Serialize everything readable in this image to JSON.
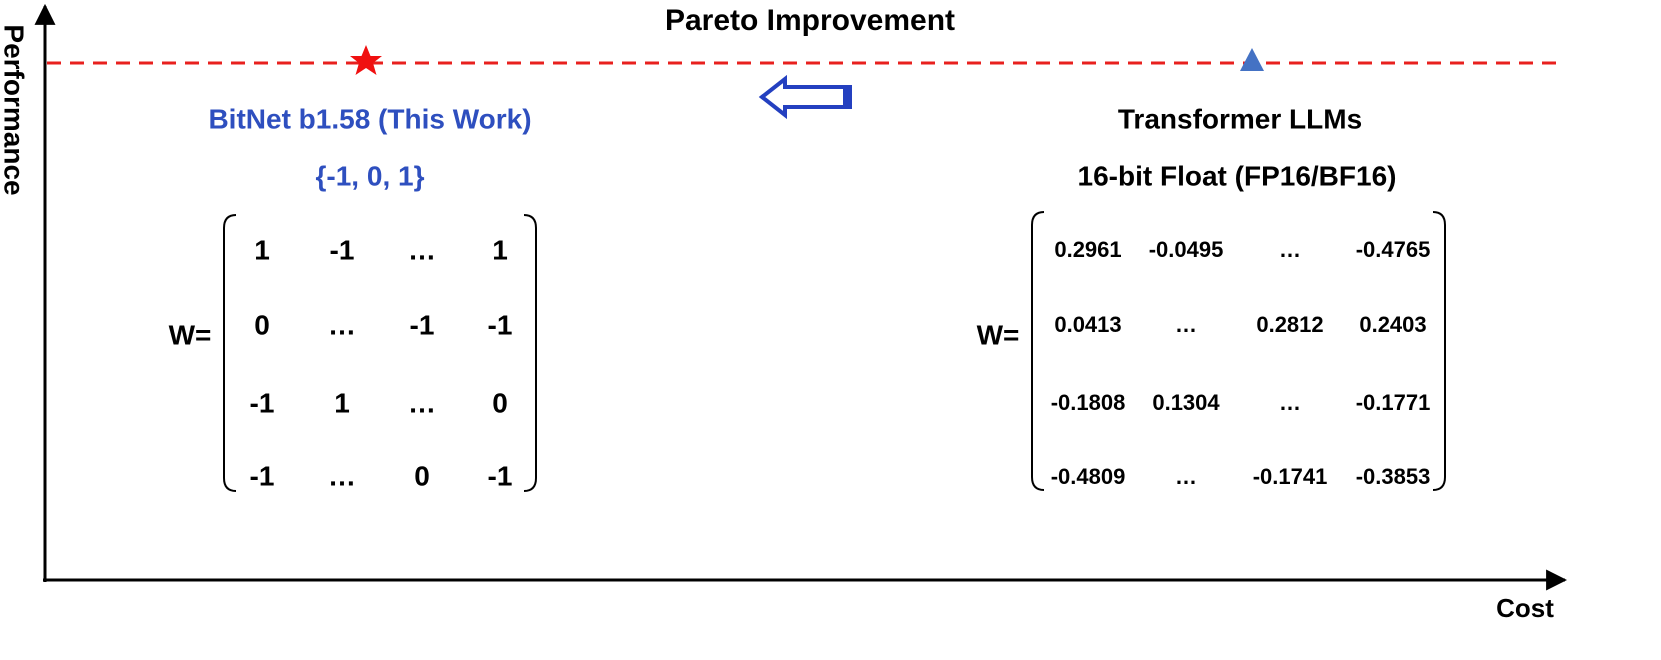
{
  "title": "Pareto Improvement",
  "axes": {
    "y_label": "Performance",
    "x_label": "Cost"
  },
  "left": {
    "name": "BitNet b1.58 (This Work)",
    "subtitle": "{-1, 0, 1}",
    "matrix_label": "W=",
    "matrix": [
      [
        "1",
        "-1",
        "…",
        "1"
      ],
      [
        "0",
        "…",
        "-1",
        "-1"
      ],
      [
        "-1",
        "1",
        "…",
        "0"
      ],
      [
        "-1",
        "…",
        "0",
        "-1"
      ]
    ]
  },
  "right": {
    "name": "Transformer LLMs",
    "subtitle": "16-bit Float (FP16/BF16)",
    "matrix_label": "W=",
    "matrix": [
      [
        "0.2961",
        "-0.0495",
        "…",
        "-0.4765"
      ],
      [
        "0.0413",
        "…",
        "0.2812",
        "0.2403"
      ],
      [
        "-0.1808",
        "0.1304",
        "…",
        "-0.1771"
      ],
      [
        "-0.4809",
        "…",
        "-0.1741",
        "-0.3853"
      ]
    ]
  }
}
